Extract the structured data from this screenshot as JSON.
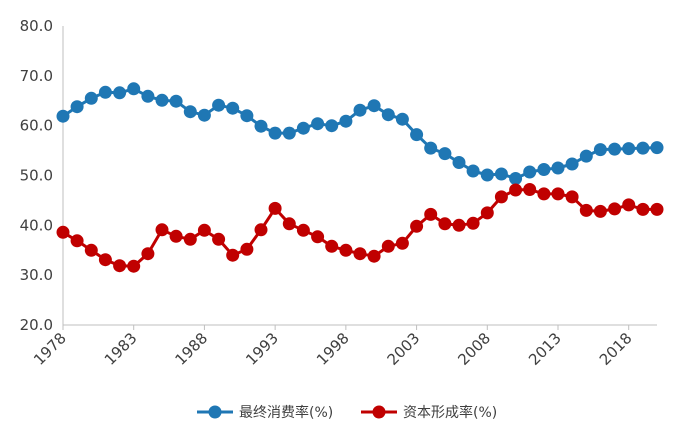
{
  "chart_data": {
    "type": "line",
    "title": "",
    "xlabel": "",
    "ylabel": "",
    "xlim": [
      1978,
      2020
    ],
    "ylim": [
      20,
      80
    ],
    "x_ticks": [
      1978,
      1983,
      1988,
      1993,
      1998,
      2003,
      2008,
      2013,
      2018
    ],
    "x_tick_labels": [
      "1978",
      "1983",
      "1988",
      "1993",
      "1998",
      "2003",
      "2008",
      "2013",
      "2018"
    ],
    "y_ticks": [
      20,
      30,
      40,
      50,
      60,
      70,
      80
    ],
    "y_tick_labels": [
      "20.0",
      "30.0",
      "40.0",
      "50.0",
      "60.0",
      "70.0",
      "80.0"
    ],
    "grid": false,
    "legend_position": "bottom",
    "x": [
      1978,
      1979,
      1980,
      1981,
      1982,
      1983,
      1984,
      1985,
      1986,
      1987,
      1988,
      1989,
      1990,
      1991,
      1992,
      1993,
      1994,
      1995,
      1996,
      1997,
      1998,
      1999,
      2000,
      2001,
      2002,
      2003,
      2004,
      2005,
      2006,
      2007,
      2008,
      2009,
      2010,
      2011,
      2012,
      2013,
      2014,
      2015,
      2016,
      2017,
      2018,
      2019,
      2020
    ],
    "series": [
      {
        "name": "最终消费率(%)",
        "color": "#1f77b4",
        "values": [
          61.9,
          63.8,
          65.5,
          66.7,
          66.6,
          67.4,
          65.9,
          65.1,
          64.9,
          62.8,
          62.1,
          64.1,
          63.5,
          62.0,
          59.9,
          58.5,
          58.5,
          59.5,
          60.4,
          60.0,
          60.9,
          63.1,
          64.0,
          62.2,
          61.3,
          58.2,
          55.5,
          54.4,
          52.6,
          50.9,
          50.1,
          50.3,
          49.4,
          50.7,
          51.2,
          51.5,
          52.3,
          53.9,
          55.2,
          55.3,
          55.4,
          55.5,
          55.6
        ]
      },
      {
        "name": "资本形成率(%)",
        "color": "#c00000",
        "values": [
          38.6,
          36.9,
          35.0,
          33.1,
          31.9,
          31.8,
          34.3,
          39.1,
          37.8,
          37.2,
          39.0,
          37.2,
          34.0,
          35.2,
          39.1,
          43.4,
          40.3,
          39.0,
          37.7,
          35.8,
          35.0,
          34.3,
          33.8,
          35.8,
          36.4,
          39.8,
          42.2,
          40.3,
          40.0,
          40.4,
          42.5,
          45.7,
          47.1,
          47.2,
          46.3,
          46.3,
          45.7,
          43.0,
          42.8,
          43.3,
          44.1,
          43.2,
          43.2
        ]
      }
    ]
  }
}
